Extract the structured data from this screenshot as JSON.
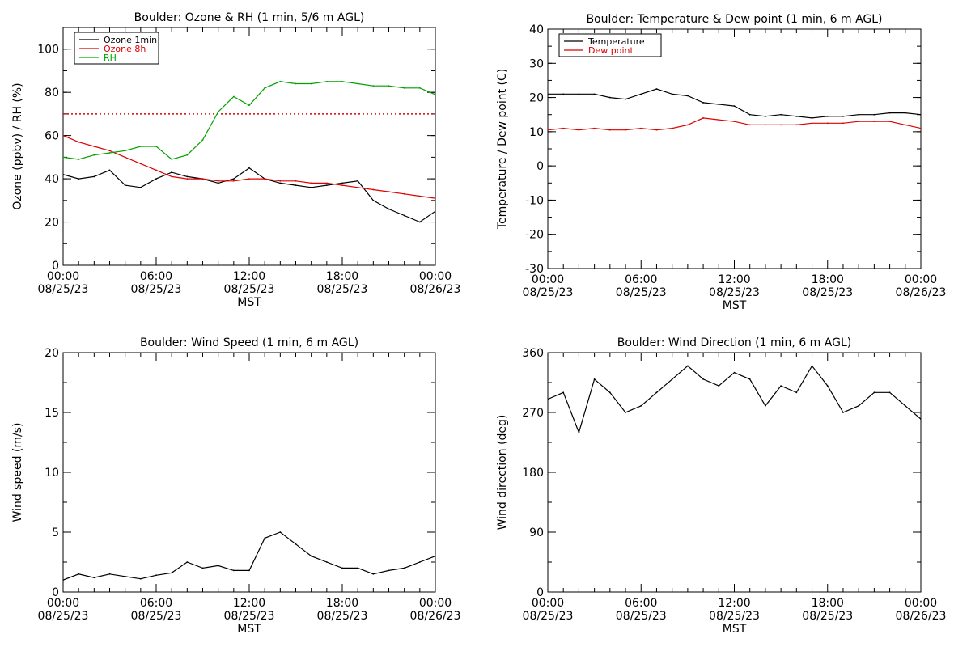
{
  "time_axis": {
    "tick_labels": [
      "00:00",
      "06:00",
      "12:00",
      "18:00",
      "00:00"
    ],
    "date_labels": [
      "08/25/23",
      "08/25/23",
      "08/25/23",
      "08/25/23",
      "08/26/23"
    ],
    "xlabel": "MST",
    "hours": [
      0,
      6,
      12,
      18,
      24
    ]
  },
  "colors": {
    "axis": "#000000",
    "ozone_1min": "#000000",
    "ozone_8h": "#dd0000",
    "rh": "#00a000",
    "temperature": "#000000",
    "dew_point": "#dd0000",
    "threshold": "#dd0000"
  },
  "chart_data": [
    {
      "id": "ozone_rh",
      "type": "line",
      "title": "Boulder: Ozone & RH (1 min, 5/6 m AGL)",
      "ylabel": "Ozone (ppbv) / RH (%)",
      "xlabel": "MST",
      "ylim": [
        0,
        110
      ],
      "yticks": [
        0,
        20,
        40,
        60,
        80,
        100
      ],
      "reference_lines": [
        {
          "y": 70,
          "style": "dotted",
          "color": "#dd0000"
        }
      ],
      "legend": {
        "placement": "top-left",
        "entries": [
          "Ozone 1min",
          "Ozone 8h",
          "RH"
        ]
      },
      "series": [
        {
          "name": "Ozone 1min",
          "color": "#000000",
          "x": [
            0,
            1,
            2,
            3,
            4,
            5,
            6,
            7,
            8,
            9,
            10,
            11,
            12,
            13,
            14,
            15,
            16,
            17,
            18,
            19,
            20,
            21,
            22,
            23,
            24
          ],
          "values": [
            42,
            40,
            41,
            44,
            37,
            36,
            40,
            43,
            41,
            40,
            38,
            40,
            45,
            40,
            38,
            37,
            36,
            37,
            38,
            39,
            30,
            26,
            23,
            20,
            25
          ]
        },
        {
          "name": "Ozone 8h",
          "color": "#dd0000",
          "x": [
            0,
            1,
            2,
            3,
            4,
            5,
            6,
            7,
            8,
            9,
            10,
            11,
            12,
            13,
            14,
            15,
            16,
            17,
            18,
            19,
            20,
            21,
            22,
            23,
            24
          ],
          "values": [
            60,
            57,
            55,
            53,
            50,
            47,
            44,
            41,
            40,
            40,
            39,
            39,
            40,
            40,
            39,
            39,
            38,
            38,
            37,
            36,
            35,
            34,
            33,
            32,
            31
          ]
        },
        {
          "name": "RH",
          "color": "#00a000",
          "x": [
            0,
            1,
            2,
            3,
            4,
            5,
            6,
            7,
            8,
            9,
            10,
            11,
            12,
            13,
            14,
            15,
            16,
            17,
            18,
            19,
            20,
            21,
            22,
            23,
            24
          ],
          "values": [
            50,
            49,
            51,
            52,
            53,
            55,
            55,
            49,
            51,
            58,
            71,
            78,
            74,
            82,
            85,
            84,
            84,
            85,
            85,
            84,
            83,
            83,
            82,
            82,
            79
          ]
        }
      ]
    },
    {
      "id": "temp_dew",
      "type": "line",
      "title": "Boulder: Temperature & Dew point (1 min, 6 m AGL)",
      "ylabel": "Temperature / Dew point (C)",
      "xlabel": "MST",
      "ylim": [
        -30,
        40
      ],
      "yticks": [
        -30,
        -20,
        -10,
        0,
        10,
        20,
        30,
        40
      ],
      "legend": {
        "placement": "top-left",
        "entries": [
          "Temperature",
          "Dew point"
        ]
      },
      "series": [
        {
          "name": "Temperature",
          "color": "#000000",
          "x": [
            0,
            1,
            2,
            3,
            4,
            5,
            6,
            7,
            8,
            9,
            10,
            11,
            12,
            13,
            14,
            15,
            16,
            17,
            18,
            19,
            20,
            21,
            22,
            23,
            24
          ],
          "values": [
            21,
            21,
            21,
            21,
            20,
            19.5,
            21,
            22.5,
            21,
            20.5,
            18.5,
            18,
            17.5,
            15,
            14.5,
            15,
            14.5,
            14,
            14.5,
            14.5,
            15,
            15,
            15.5,
            15.5,
            15
          ]
        },
        {
          "name": "Dew point",
          "color": "#dd0000",
          "x": [
            0,
            1,
            2,
            3,
            4,
            5,
            6,
            7,
            8,
            9,
            10,
            11,
            12,
            13,
            14,
            15,
            16,
            17,
            18,
            19,
            20,
            21,
            22,
            23,
            24
          ],
          "values": [
            10.5,
            11,
            10.5,
            11,
            10.5,
            10.5,
            11,
            10.5,
            11,
            12,
            14,
            13.5,
            13,
            12,
            12,
            12,
            12,
            12.5,
            12.5,
            12.5,
            13,
            13,
            13,
            12,
            11
          ]
        }
      ]
    },
    {
      "id": "wind_speed",
      "type": "line",
      "title": "Boulder: Wind Speed (1 min, 6 m AGL)",
      "ylabel": "Wind speed (m/s)",
      "xlabel": "MST",
      "ylim": [
        0,
        20
      ],
      "yticks": [
        0,
        5,
        10,
        15,
        20
      ],
      "series": [
        {
          "name": "",
          "color": "#000000",
          "x": [
            0,
            1,
            2,
            3,
            4,
            5,
            6,
            7,
            8,
            9,
            10,
            11,
            12,
            13,
            14,
            15,
            16,
            17,
            18,
            19,
            20,
            21,
            22,
            23,
            24
          ],
          "values": [
            1,
            1.5,
            1.2,
            1.5,
            1.3,
            1.1,
            1.4,
            1.6,
            2.5,
            2,
            2.2,
            1.8,
            1.8,
            4.5,
            5,
            4,
            3,
            2.5,
            2,
            2,
            1.5,
            1.8,
            2,
            2.5,
            3
          ]
        }
      ]
    },
    {
      "id": "wind_direction",
      "type": "line",
      "title": "Boulder: Wind Direction (1 min, 6 m AGL)",
      "ylabel": "Wind direction (deg)",
      "xlabel": "MST",
      "ylim": [
        0,
        360
      ],
      "yticks": [
        0,
        90,
        180,
        270,
        360
      ],
      "series": [
        {
          "name": "",
          "color": "#000000",
          "x": [
            0,
            1,
            2,
            3,
            4,
            5,
            6,
            7,
            8,
            9,
            10,
            11,
            12,
            13,
            14,
            15,
            16,
            17,
            18,
            19,
            20,
            21,
            22,
            23,
            24
          ],
          "values": [
            290,
            300,
            240,
            320,
            300,
            270,
            280,
            300,
            320,
            340,
            320,
            310,
            330,
            320,
            280,
            310,
            300,
            340,
            310,
            270,
            280,
            300,
            300,
            280,
            260
          ]
        }
      ]
    }
  ]
}
